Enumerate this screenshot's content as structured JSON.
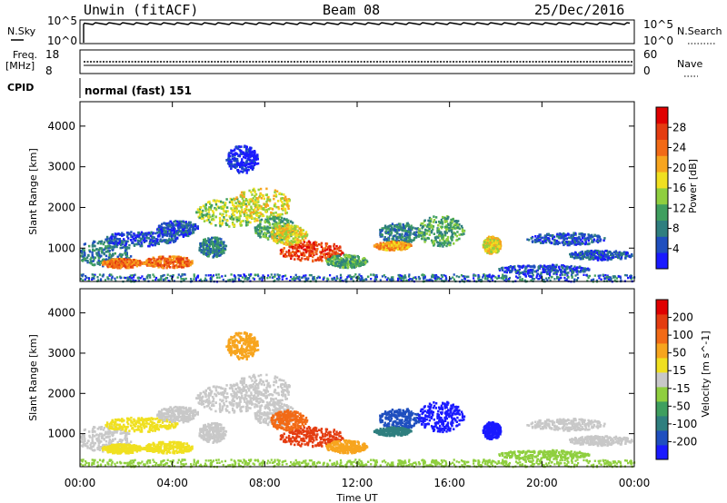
{
  "header": {
    "station": "Unwin (fitACF)",
    "beam": "Beam 08",
    "date": "25/Dec/2016"
  },
  "top_panels": {
    "nsky_label": "N.Sky",
    "nsky_ticks": [
      "10^5",
      "10^0"
    ],
    "nsearch_label": "N.Search",
    "nsearch_ticks": [
      "10^5",
      "10^0"
    ],
    "freq_label_1": "Freq.",
    "freq_label_2": "[MHz]",
    "freq_ticks": [
      "18",
      "8"
    ],
    "nave_label": "Nave",
    "nave_ticks": [
      "60",
      "0"
    ],
    "cpid_label": "CPID",
    "cpid_value": "normal (fast) 151"
  },
  "colors": {
    "power_scale": [
      "#1a1aff",
      "#1f4fbf",
      "#2f7f7f",
      "#3f9f5f",
      "#8fcf3f",
      "#f0e020",
      "#f7a51e",
      "#f26a16",
      "#e43c10",
      "#e00000"
    ],
    "velocity_scale": [
      "#1a1aff",
      "#1f4fbf",
      "#2f7f7f",
      "#3f9f5f",
      "#8fcf3f",
      "#c8c8c8",
      "#f0e020",
      "#f7a51e",
      "#f26a16",
      "#e43c10",
      "#e00000"
    ]
  },
  "chart_data": [
    {
      "type": "heatmap",
      "title": "",
      "xlabel": "Time UT",
      "ylabel": "Slant Range [km]",
      "x_ticks": [
        "00:00",
        "04:00",
        "08:00",
        "12:00",
        "16:00",
        "20:00",
        "00:00"
      ],
      "x_range_hours": [
        0,
        24
      ],
      "ylim": [
        180,
        4600
      ],
      "y_ticks": [
        1000,
        2000,
        3000,
        4000
      ],
      "colorbar": {
        "label": "Power [dB]",
        "ticks": [
          "28",
          "24",
          "20",
          "16",
          "12",
          "8",
          "4"
        ],
        "range": [
          0,
          30
        ]
      }
    },
    {
      "type": "heatmap",
      "title": "",
      "xlabel": "Time UT",
      "ylabel": "Slant Range [km]",
      "x_ticks": [
        "00:00",
        "04:00",
        "08:00",
        "12:00",
        "16:00",
        "20:00",
        "00:00"
      ],
      "x_range_hours": [
        0,
        24
      ],
      "ylim": [
        180,
        4600
      ],
      "y_ticks": [
        1000,
        2000,
        3000,
        4000
      ],
      "colorbar": {
        "label": "Velocity [m s^-1]",
        "ticks": [
          "200",
          "100",
          "50",
          "15",
          "-15",
          "-50",
          "-100",
          "-200"
        ],
        "range": [
          -250,
          250
        ]
      }
    }
  ]
}
